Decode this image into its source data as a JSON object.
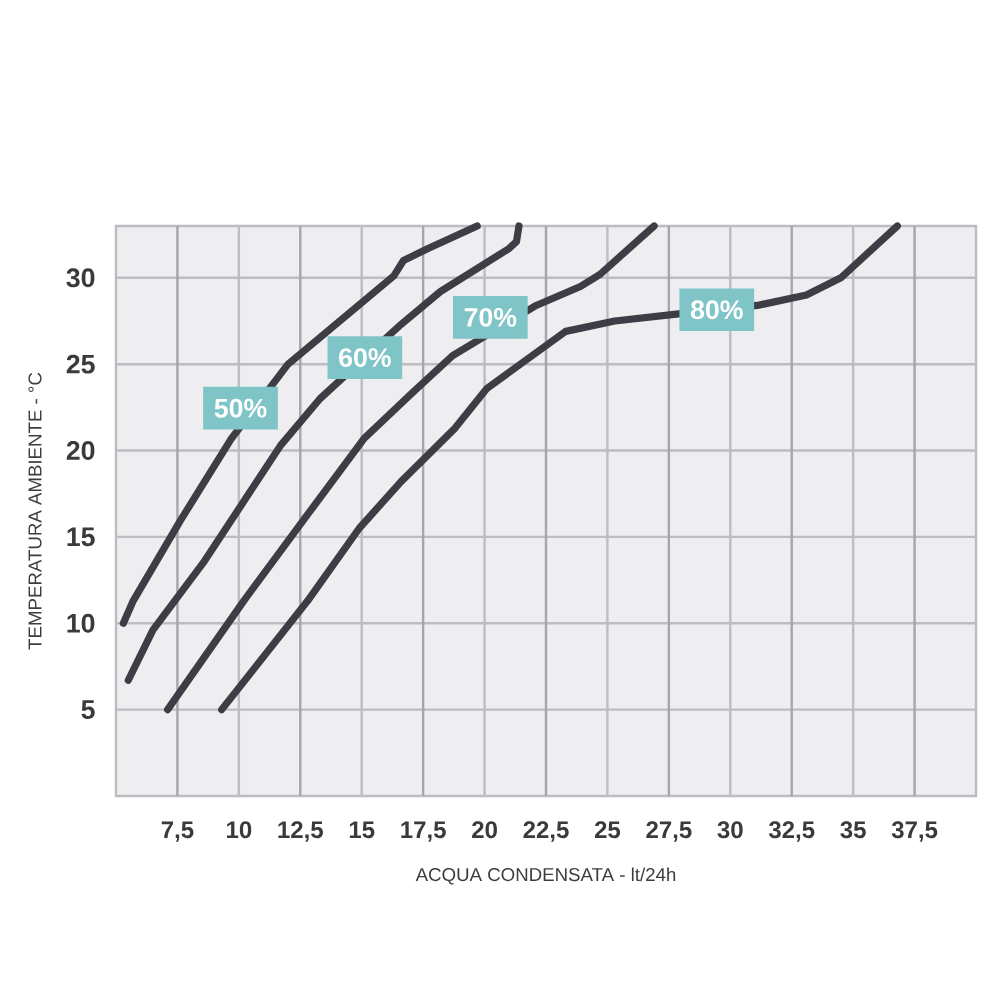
{
  "chart_data": {
    "type": "line",
    "xlabel": "ACQUA CONDENSATA - lt/24h",
    "ylabel": "TEMPERATURA AMBIENTE - °C",
    "xlim": [
      5,
      40
    ],
    "ylim": [
      0,
      33
    ],
    "xticks": [
      {
        "value": 7.5,
        "label": "7,5"
      },
      10,
      {
        "value": 12.5,
        "label": "12,5"
      },
      15,
      {
        "value": 17.5,
        "label": "17,5"
      },
      20,
      {
        "value": 22.5,
        "label": "22,5"
      },
      25,
      {
        "value": 27.5,
        "label": "27,5"
      },
      30,
      {
        "value": 32.5,
        "label": "32,5"
      },
      35,
      {
        "value": 37.5,
        "label": "37,5"
      }
    ],
    "yticks": [
      5,
      10,
      15,
      20,
      25,
      30
    ],
    "grid": true,
    "series": [
      {
        "name": "50%",
        "color": "#3d3d45",
        "x": [
          5.3,
          5.7,
          7.6,
          9.7,
          12.0,
          16.3,
          16.7,
          17.7,
          19.7
        ],
        "values": [
          10.0,
          11.3,
          15.9,
          20.7,
          25.0,
          30.1,
          31.0,
          31.7,
          33.0
        ]
      },
      {
        "name": "60%",
        "color": "#3d3d45",
        "x": [
          5.5,
          6.5,
          8.6,
          11.7,
          13.3,
          16.6,
          18.2,
          21.0,
          21.3,
          21.4
        ],
        "values": [
          6.7,
          9.6,
          13.6,
          20.3,
          23.0,
          27.3,
          29.2,
          31.7,
          32.1,
          33.0
        ]
      },
      {
        "name": "70%",
        "color": "#3d3d45",
        "x": [
          7.1,
          10.2,
          12.8,
          15.1,
          17.1,
          18.7,
          22.1,
          23.9,
          24.7,
          26.9
        ],
        "values": [
          5.0,
          11.3,
          16.3,
          20.7,
          23.4,
          25.5,
          28.4,
          29.5,
          30.2,
          33.0
        ]
      },
      {
        "name": "80%",
        "color": "#3d3d45",
        "x": [
          9.3,
          12.8,
          14.9,
          16.6,
          18.8,
          20.1,
          23.3,
          25.3,
          27.8,
          31.1,
          33.1,
          34.5,
          36.8
        ],
        "values": [
          5.0,
          11.3,
          15.5,
          18.2,
          21.3,
          23.6,
          26.9,
          27.5,
          27.9,
          28.4,
          29.0,
          30.0,
          33.0
        ]
      }
    ]
  }
}
